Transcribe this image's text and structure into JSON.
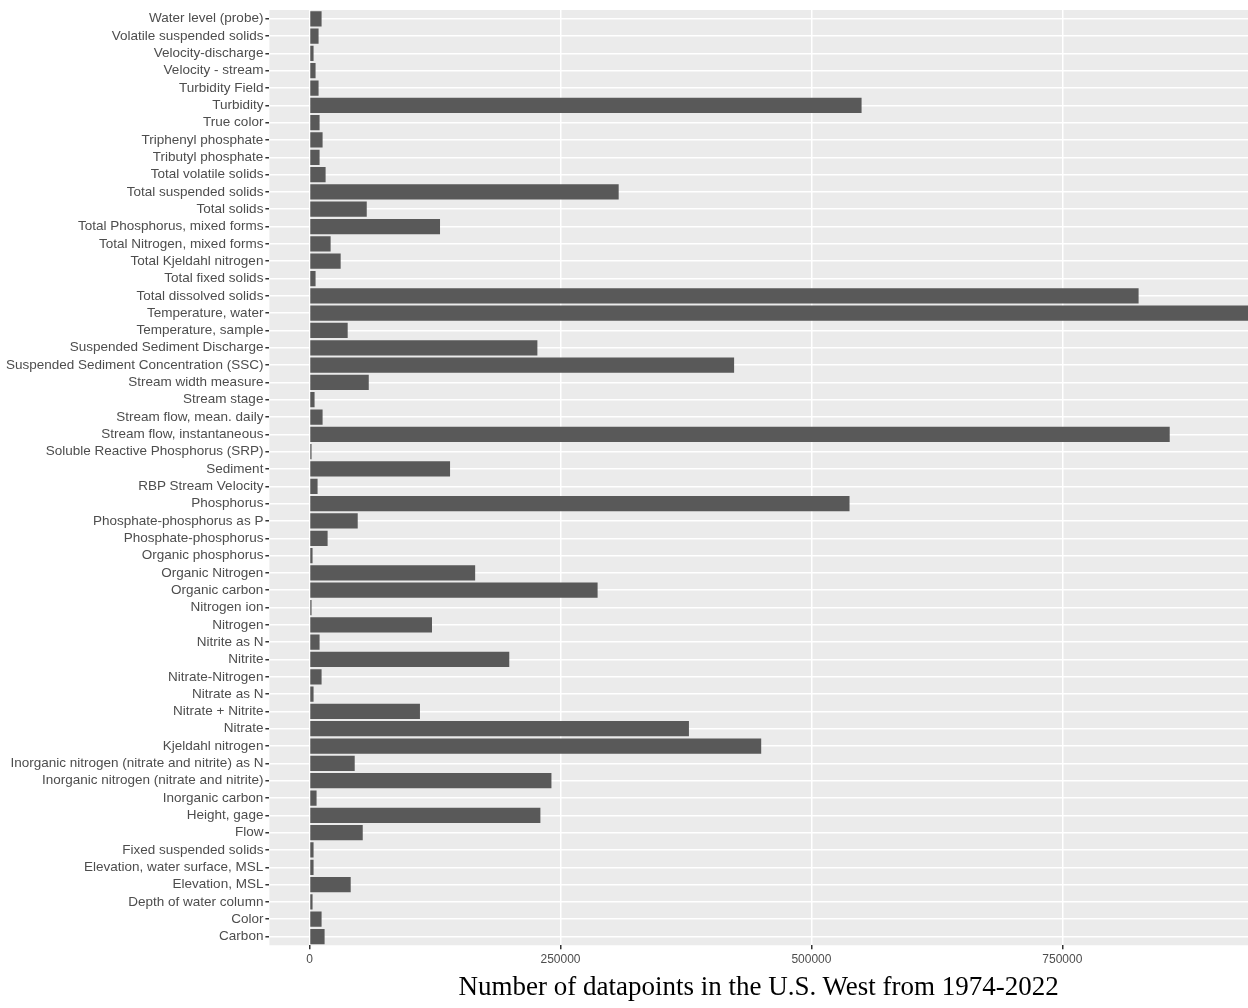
{
  "chart_data": {
    "type": "bar",
    "orientation": "horizontal",
    "xlabel": "Number of datapoints in the U.S. West from 1974-2022",
    "categories": [
      "Water level (probe)",
      "Volatile suspended solids",
      "Velocity-discharge",
      "Velocity - stream",
      "Turbidity Field",
      "Turbidity",
      "True color",
      "Triphenyl phosphate",
      "Tributyl phosphate",
      "Total volatile solids",
      "Total suspended solids",
      "Total solids",
      "Total Phosphorus, mixed forms",
      "Total Nitrogen, mixed forms",
      "Total Kjeldahl nitrogen",
      "Total fixed solids",
      "Total dissolved solids",
      "Temperature, water",
      "Temperature, sample",
      "Suspended Sediment Discharge",
      "Suspended Sediment Concentration (SSC)",
      "Stream width measure",
      "Stream stage",
      "Stream flow, mean. daily",
      "Stream flow, instantaneous",
      "Soluble Reactive Phosphorus (SRP)",
      "Sediment",
      "RBP Stream Velocity",
      "Phosphorus",
      "Phosphate-phosphorus as P",
      "Phosphate-phosphorus",
      "Organic phosphorus",
      "Organic Nitrogen",
      "Organic carbon",
      "Nitrogen ion",
      "Nitrogen",
      "Nitrite as N",
      "Nitrite",
      "Nitrate-Nitrogen",
      "Nitrate as N",
      "Nitrate + Nitrite",
      "Nitrate",
      "Kjeldahl nitrogen",
      "Inorganic nitrogen (nitrate and nitrite) as N",
      "Inorganic nitrogen (nitrate and nitrite)",
      "Inorganic carbon",
      "Height, gage",
      "Flow",
      "Fixed suspended solids",
      "Elevation, water surface, MSL",
      "Elevation, MSL",
      "Depth of water column",
      "Color",
      "Carbon"
    ],
    "values": [
      12000,
      9000,
      4000,
      6000,
      9000,
      550000,
      10000,
      13000,
      10000,
      16000,
      308000,
      57000,
      130000,
      21000,
      31000,
      6000,
      826000,
      935000,
      38000,
      227000,
      423000,
      59000,
      5000,
      13000,
      857000,
      2000,
      140000,
      8000,
      538000,
      48000,
      18000,
      3000,
      165000,
      287000,
      2000,
      122000,
      10000,
      199000,
      12000,
      4000,
      110000,
      378000,
      450000,
      45000,
      241000,
      7000,
      230000,
      53000,
      4000,
      4000,
      41000,
      3000,
      12000,
      15000
    ],
    "color": "#595959",
    "xlim": [
      -40000,
      935000
    ],
    "xticks": [
      0,
      250000,
      500000,
      750000
    ],
    "grid": true
  }
}
